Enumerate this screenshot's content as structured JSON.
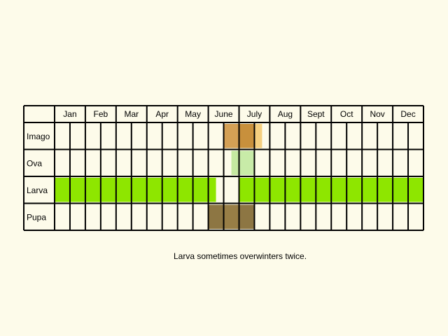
{
  "chart_data": {
    "type": "table",
    "title": "",
    "months": [
      "Jan",
      "Feb",
      "Mar",
      "Apr",
      "May",
      "June",
      "July",
      "Aug",
      "Sept",
      "Oct",
      "Nov",
      "Dec"
    ],
    "periods_per_month": 2,
    "stages": [
      {
        "name": "Imago",
        "spans": [
          {
            "start": 11,
            "end": 12,
            "color": "#d4a055"
          },
          {
            "start": 12,
            "end": 13,
            "color": "#c8903c"
          },
          {
            "start": 13,
            "end": 13.5,
            "color": "#f5cf7f"
          }
        ]
      },
      {
        "name": "Ova",
        "spans": [
          {
            "start": 11.5,
            "end": 12,
            "color": "#c5e8a0"
          },
          {
            "start": 12,
            "end": 13,
            "color": "#c8eba8"
          }
        ]
      },
      {
        "name": "Larva",
        "spans": [
          {
            "start": 0,
            "end": 10.5,
            "color": "#8ee600"
          },
          {
            "start": 12,
            "end": 24,
            "color": "#8ee600"
          }
        ]
      },
      {
        "name": "Pupa",
        "spans": [
          {
            "start": 10,
            "end": 11,
            "color": "#8d7643"
          },
          {
            "start": 11,
            "end": 12,
            "color": "#987e46"
          },
          {
            "start": 12,
            "end": 13,
            "color": "#8d7643"
          }
        ]
      }
    ]
  },
  "note": "Larva sometimes overwinters twice."
}
